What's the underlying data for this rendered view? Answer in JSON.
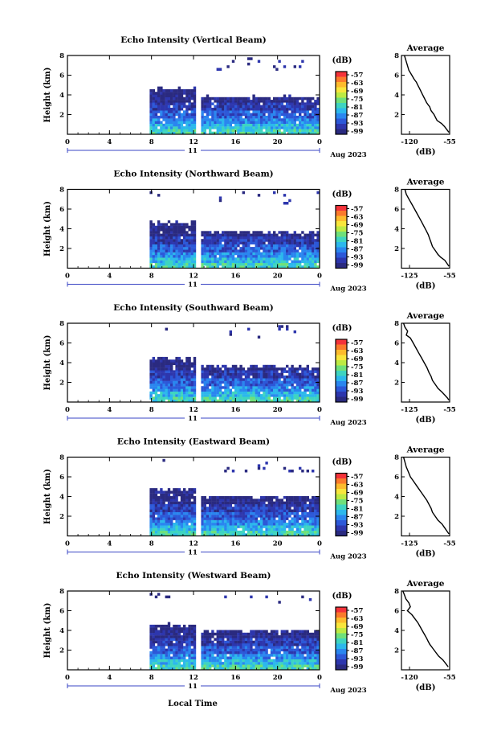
{
  "figure": {
    "xlabel": "Local Time",
    "date_label": "Aug 2023",
    "day_label": "11",
    "colorbar": {
      "unit": "(dB)",
      "ticks": [
        "-57",
        "-63",
        "-69",
        "-75",
        "-81",
        "-87",
        "-93",
        "-99"
      ],
      "colors": [
        "#f4333a",
        "#fb7a2c",
        "#fdbb2d",
        "#f8e63c",
        "#bdea43",
        "#6fe07a",
        "#3ed4c0",
        "#2cb8ec",
        "#2a86ef",
        "#2c58d8",
        "#2d36ad",
        "#2a2a80"
      ]
    },
    "profile_title": "Average",
    "profile_xlabel": "(dB)"
  },
  "chart_data": [
    {
      "type": "heatmap",
      "title": "Echo Intensity (Vertical Beam)",
      "ylabel": "Height (km)",
      "xticks": [
        "0",
        "4",
        "8",
        "12",
        "16",
        "20",
        "0"
      ],
      "yticks": [
        "2",
        "4",
        "6",
        "8"
      ],
      "xlim": [
        0,
        24
      ],
      "ylim": [
        0,
        8
      ],
      "data_start_hour": 7.6,
      "gap_hours": [
        12.2,
        12.6
      ],
      "top_before_gap_km": 4.6,
      "top_after_gap_km": 3.8,
      "profile": {
        "xticks": [
          "-120",
          "-55"
        ],
        "yticks": [
          "2",
          "4",
          "6",
          "8"
        ],
        "xlim": [
          -120,
          -55
        ],
        "x": [
          -116,
          -114,
          -112,
          -110,
          -106,
          -103,
          -100,
          -98,
          -96,
          -94,
          -92,
          -90,
          -88,
          -86,
          -84,
          -82,
          -80,
          -76,
          -72,
          -66,
          -62,
          -58,
          -56
        ],
        "y": [
          8,
          7.5,
          7,
          6.5,
          6,
          5.6,
          5.3,
          5,
          4.7,
          4.4,
          4.1,
          3.8,
          3.5,
          3.2,
          3,
          2.8,
          2.4,
          2,
          1.4,
          1.1,
          0.8,
          0.4,
          0.2
        ]
      }
    },
    {
      "type": "heatmap",
      "title": "Echo Intensity (Northward Beam)",
      "ylabel": "Height (km)",
      "xticks": [
        "0",
        "4",
        "8",
        "12",
        "16",
        "20",
        "0"
      ],
      "yticks": [
        "2",
        "4",
        "6",
        "8"
      ],
      "xlim": [
        0,
        24
      ],
      "ylim": [
        0,
        8
      ],
      "data_start_hour": 7.6,
      "gap_hours": [
        12.2,
        12.6
      ],
      "top_before_gap_km": 4.6,
      "top_after_gap_km": 3.7,
      "profile": {
        "xticks": [
          "-125",
          "-55"
        ],
        "yticks": [
          "2",
          "4",
          "6",
          "8"
        ],
        "xlim": [
          -125,
          -55
        ],
        "x": [
          -120,
          -118,
          -114,
          -110,
          -106,
          -102,
          -98,
          -95,
          -92,
          -89,
          -86,
          -84,
          -82,
          -80,
          -76,
          -72,
          -68,
          -62,
          -58,
          -56
        ],
        "y": [
          8,
          7.5,
          7,
          6.5,
          6,
          5.5,
          5,
          4.6,
          4.2,
          3.8,
          3.4,
          3,
          2.6,
          2.2,
          1.8,
          1.4,
          1.1,
          0.8,
          0.4,
          0.2
        ]
      }
    },
    {
      "type": "heatmap",
      "title": "Echo Intensity (Southward Beam)",
      "ylabel": "Height (km)",
      "xticks": [
        "0",
        "4",
        "8",
        "12",
        "16",
        "20",
        "0"
      ],
      "yticks": [
        "2",
        "4",
        "6",
        "8"
      ],
      "xlim": [
        0,
        24
      ],
      "ylim": [
        0,
        8
      ],
      "data_start_hour": 7.6,
      "gap_hours": [
        12.2,
        12.6
      ],
      "top_before_gap_km": 4.4,
      "top_after_gap_km": 3.6,
      "profile": {
        "xticks": [
          "-125",
          "-55"
        ],
        "yticks": [
          "2",
          "4",
          "6",
          "8"
        ],
        "xlim": [
          -125,
          -55
        ],
        "x": [
          -122,
          -120,
          -116,
          -118,
          -112,
          -108,
          -104,
          -100,
          -96,
          -92,
          -88,
          -85,
          -82,
          -80,
          -76,
          -72,
          -66,
          -62,
          -58,
          -56
        ],
        "y": [
          8,
          7.6,
          7.2,
          6.8,
          6.5,
          6,
          5.5,
          5,
          4.5,
          4,
          3.5,
          3,
          2.6,
          2.2,
          1.8,
          1.4,
          1,
          0.7,
          0.4,
          0.2
        ]
      }
    },
    {
      "type": "heatmap",
      "title": "Echo Intensity (Eastward Beam)",
      "ylabel": "Height (km)",
      "xticks": [
        "0",
        "4",
        "8",
        "12",
        "16",
        "20",
        "0"
      ],
      "yticks": [
        "2",
        "4",
        "6",
        "8"
      ],
      "xlim": [
        0,
        24
      ],
      "ylim": [
        0,
        8
      ],
      "data_start_hour": 7.6,
      "gap_hours": [
        12.2,
        12.6
      ],
      "top_before_gap_km": 4.8,
      "top_after_gap_km": 4.0,
      "profile": {
        "xticks": [
          "-125",
          "-55"
        ],
        "yticks": [
          "2",
          "4",
          "6",
          "8"
        ],
        "xlim": [
          -125,
          -55
        ],
        "x": [
          -122,
          -120,
          -118,
          -115,
          -112,
          -108,
          -104,
          -100,
          -96,
          -92,
          -88,
          -85,
          -82,
          -80,
          -76,
          -72,
          -66,
          -62,
          -58,
          -56
        ],
        "y": [
          8,
          7.5,
          7,
          6.5,
          6,
          5.6,
          5.2,
          4.8,
          4.4,
          4,
          3.6,
          3.2,
          2.8,
          2.4,
          2,
          1.6,
          1.2,
          0.8,
          0.4,
          0.2
        ]
      }
    },
    {
      "type": "heatmap",
      "title": "Echo Intensity (Westward Beam)",
      "ylabel": "Height (km)",
      "xticks": [
        "0",
        "4",
        "8",
        "12",
        "16",
        "20",
        "0"
      ],
      "yticks": [
        "2",
        "4",
        "6",
        "8"
      ],
      "xlim": [
        0,
        24
      ],
      "ylim": [
        0,
        8
      ],
      "data_start_hour": 7.6,
      "gap_hours": [
        12.2,
        12.6
      ],
      "top_before_gap_km": 4.6,
      "top_after_gap_km": 4.0,
      "profile": {
        "xticks": [
          "-120",
          "-55"
        ],
        "yticks": [
          "2",
          "4",
          "6",
          "8"
        ],
        "xlim": [
          -120,
          -55
        ],
        "x": [
          -118,
          -116,
          -114,
          -110,
          -108,
          -112,
          -106,
          -102,
          -98,
          -95,
          -92,
          -89,
          -86,
          -84,
          -82,
          -78,
          -74,
          -70,
          -64,
          -60,
          -57
        ],
        "y": [
          8,
          7.6,
          7.2,
          6.8,
          6.4,
          6,
          5.6,
          5.2,
          4.8,
          4.4,
          4,
          3.6,
          3.2,
          2.9,
          2.6,
          2.2,
          1.8,
          1.4,
          1,
          0.6,
          0.3
        ]
      }
    }
  ]
}
